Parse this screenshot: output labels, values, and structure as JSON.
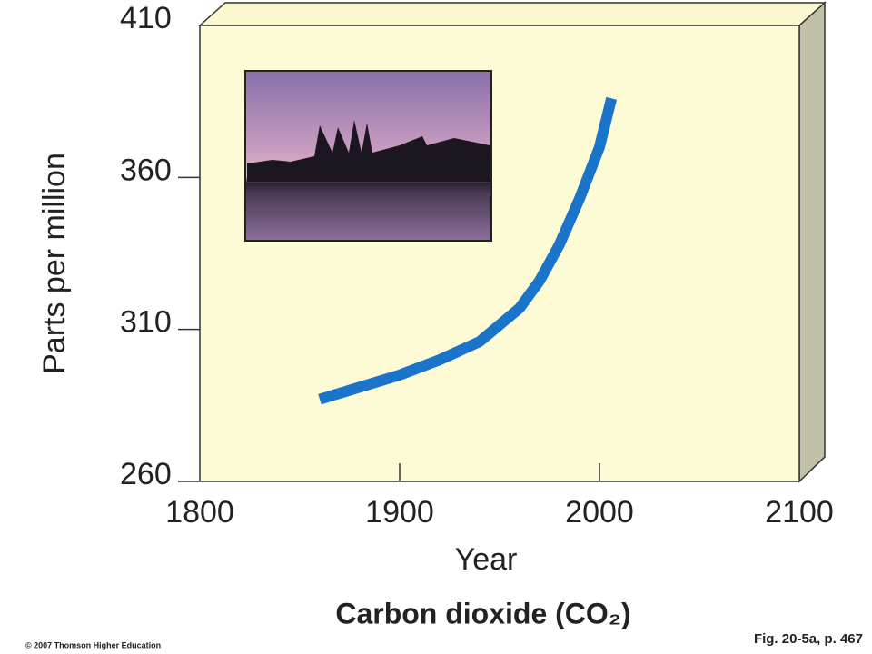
{
  "chart_data": {
    "type": "line",
    "title": "Carbon dioxide (CO₂)",
    "x_label": "Year",
    "y_label": "Parts per million",
    "x": [
      1860,
      1880,
      1900,
      1920,
      1940,
      1960,
      1970,
      1980,
      1990,
      2000,
      2006
    ],
    "values": [
      287,
      291,
      295,
      300,
      306,
      317,
      326,
      338,
      353,
      370,
      386
    ],
    "color": "#1a74c9",
    "xlim": [
      1800,
      2100
    ],
    "xticks": [
      1800,
      1900,
      2000,
      2100
    ],
    "ylim": [
      260,
      410
    ],
    "yticks": [
      260,
      310,
      360,
      410
    ],
    "credit": "© 2007 Thomson Higher Education",
    "figure_ref": "Fig. 20-5a, p. 467"
  }
}
